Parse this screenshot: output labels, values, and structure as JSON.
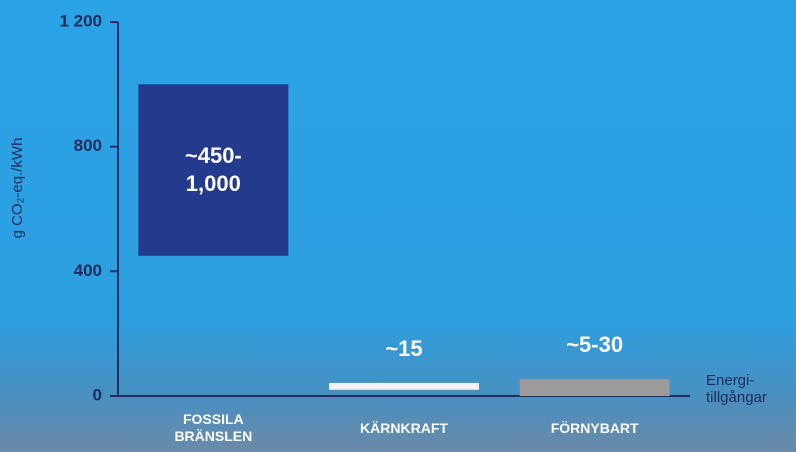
{
  "chart_data": {
    "type": "range_bar",
    "y_label": "g CO₂-eq./kWh",
    "x_label": "Energi-tillgångar",
    "categories": [
      "FOSSILA BRÄNSLEN",
      "KÄRNKRAFT",
      "FÖRNYBART"
    ],
    "low": [
      450,
      20,
      0
    ],
    "high": [
      1000,
      42,
      54
    ],
    "colors": [
      "#243a8c",
      "#f2f2f2",
      "#9b9b9b"
    ],
    "labels": [
      "~450-\n1,000",
      "~15",
      "~5-30"
    ],
    "ylim": [
      0,
      1200
    ],
    "yticks": [
      0,
      400,
      800,
      {
        "value": 1200,
        "label": "1 200"
      }
    ]
  }
}
